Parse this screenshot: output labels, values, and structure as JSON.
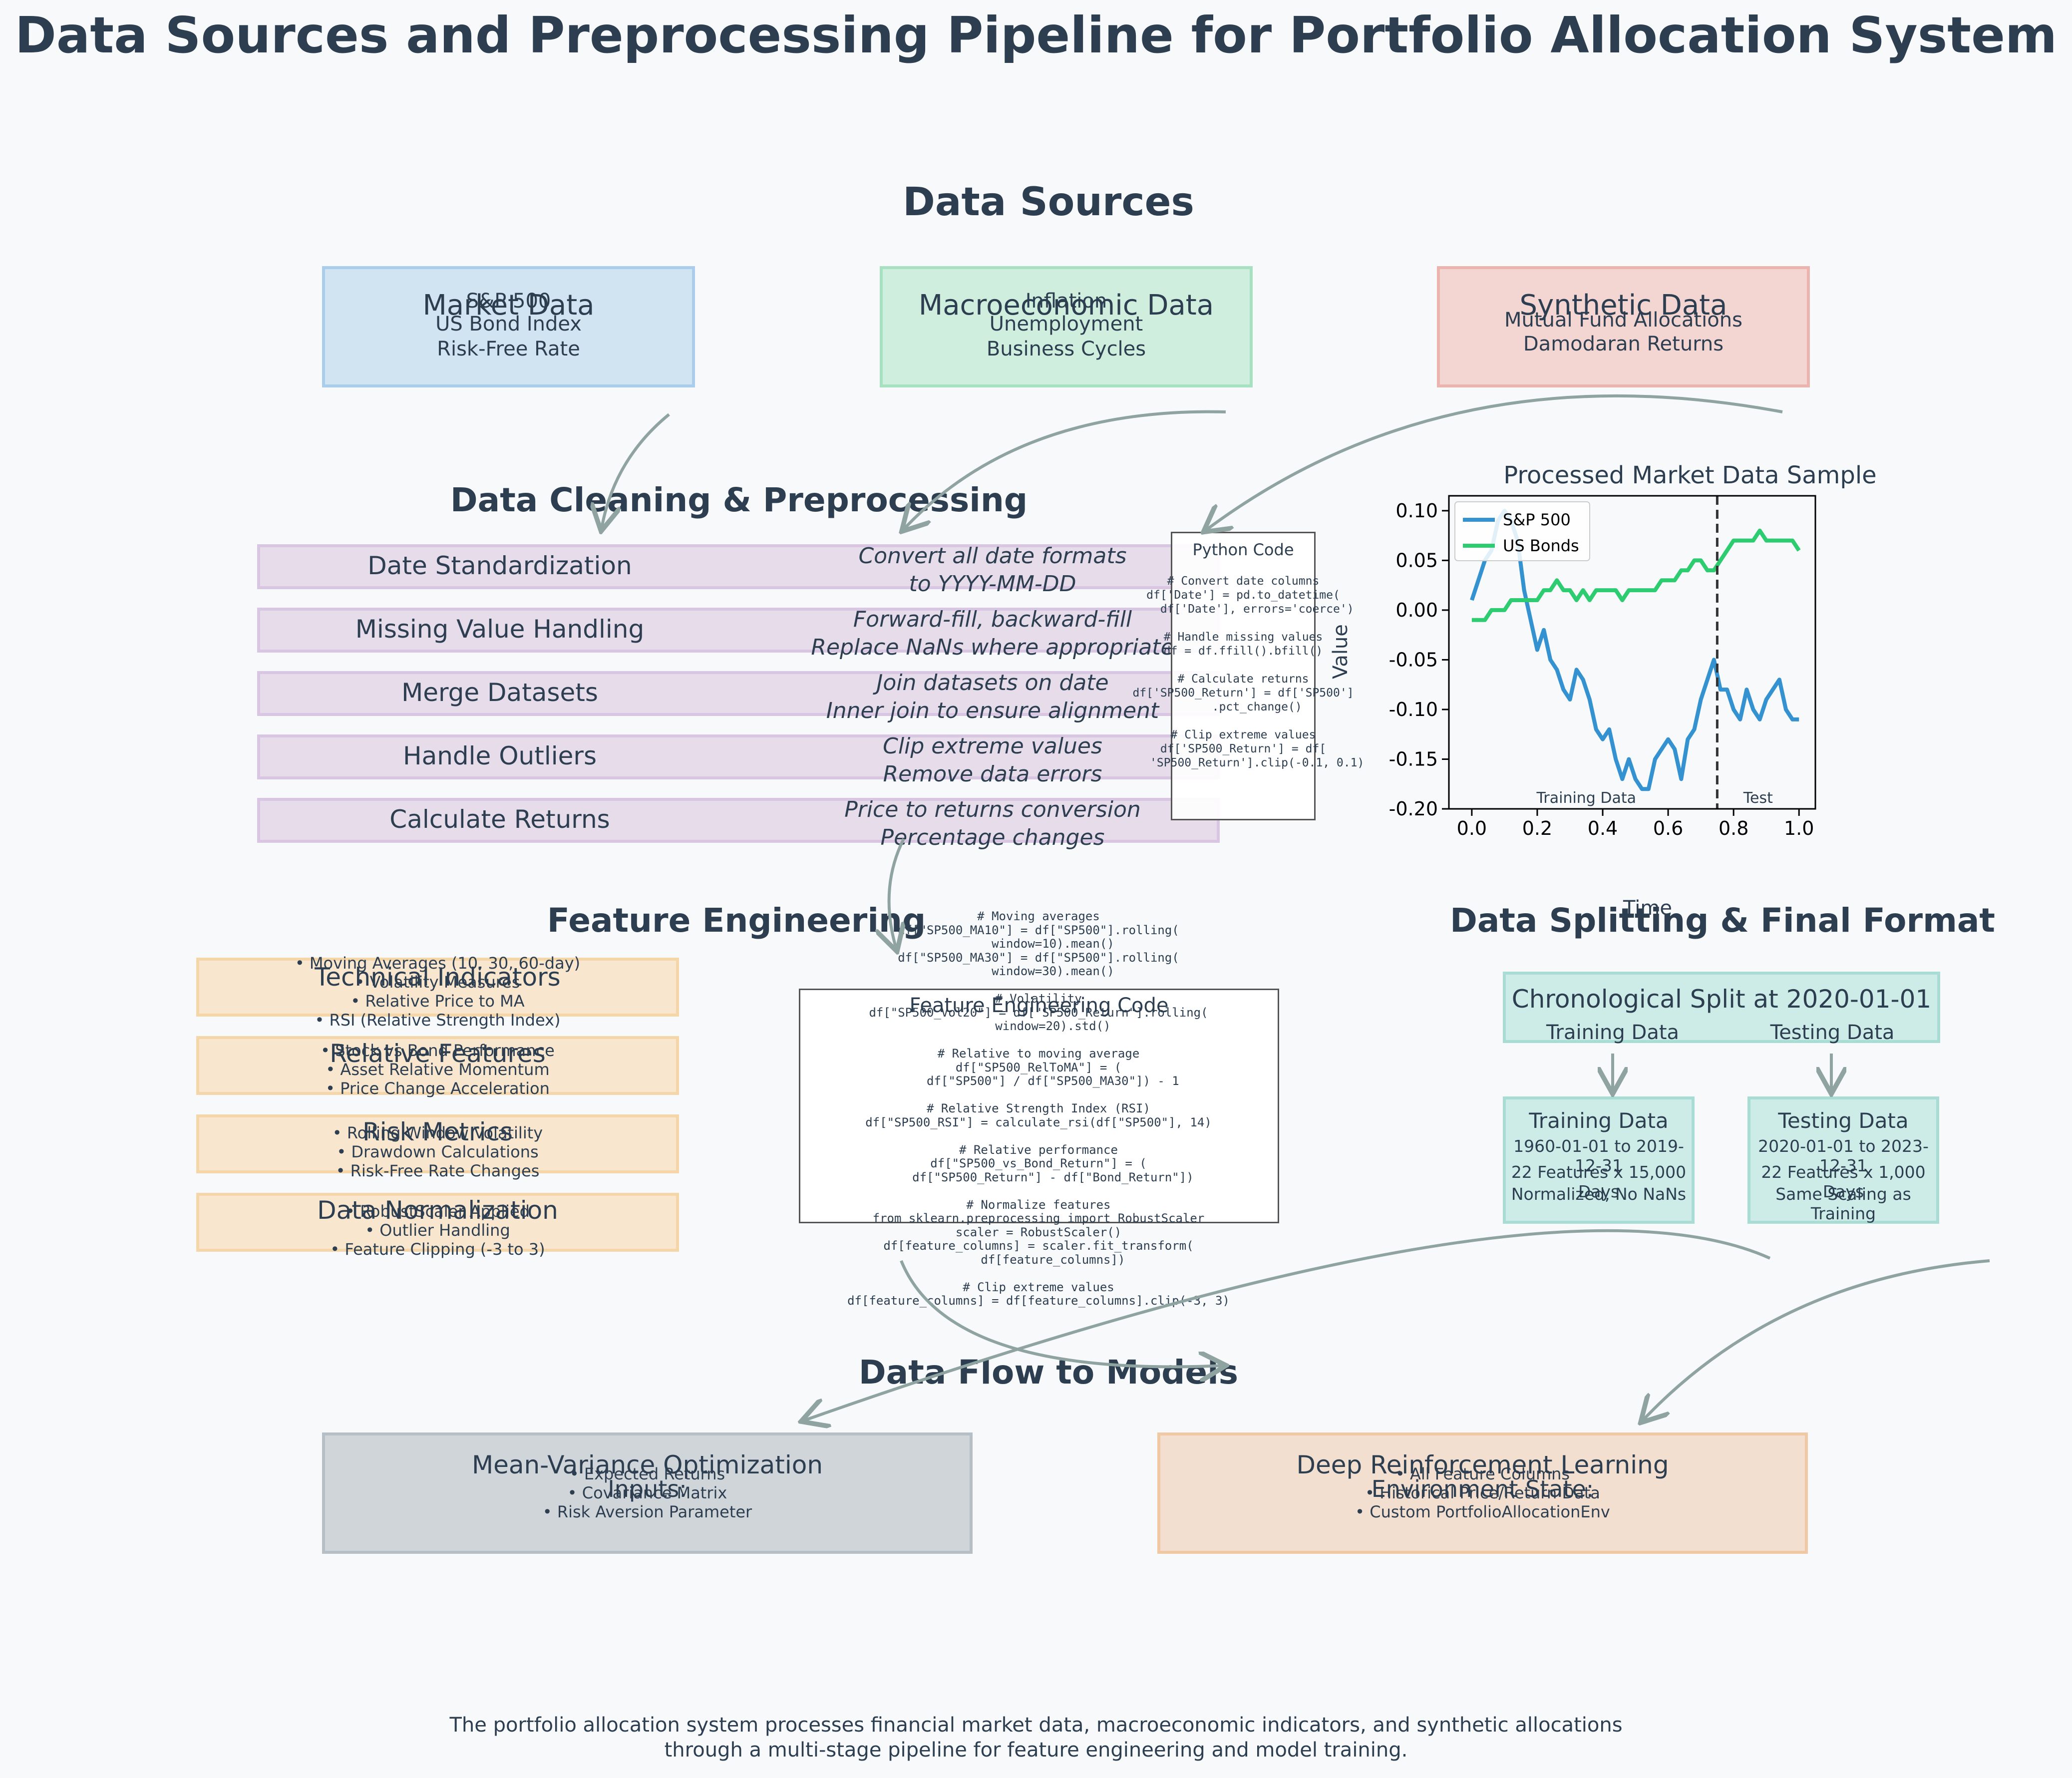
{
  "title": "Data Sources and Preprocessing Pipeline for Portfolio Allocation System",
  "sections": {
    "data_sources": "Data Sources",
    "cleaning": "Data Cleaning & Preprocessing",
    "feature_engineering": "Feature Engineering",
    "splitting": "Data Splitting & Final Format",
    "data_flow": "Data Flow to Models"
  },
  "sources": [
    {
      "title": "Market Data",
      "items": [
        "S&P 500",
        "US Bond Index",
        "Risk-Free Rate"
      ],
      "fill": "#d0e4f2",
      "border": "#a9cdea"
    },
    {
      "title": "Macroeconomic Data",
      "items": [
        "Inflation",
        "Unemployment",
        "Business Cycles"
      ],
      "fill": "#cfeedd",
      "border": "#a8e0c2"
    },
    {
      "title": "Synthetic Data",
      "items": [
        "Mutual Fund Allocations",
        "Damodaran Returns"
      ],
      "fill": "#f3d5d2",
      "border": "#ebb4af"
    }
  ],
  "cleaning_steps": [
    {
      "name": "Date Standardization",
      "desc1": "Convert all date formats",
      "desc2": "to YYYY-MM-DD"
    },
    {
      "name": "Missing Value Handling",
      "desc1": "Forward-fill, backward-fill",
      "desc2": "Replace NaNs where appropriate"
    },
    {
      "name": "Merge Datasets",
      "desc1": "Join datasets on date",
      "desc2": "Inner join to ensure alignment"
    },
    {
      "name": "Handle Outliers",
      "desc1": "Clip extreme values",
      "desc2": "Remove data errors"
    },
    {
      "name": "Calculate Returns",
      "desc1": "Price to returns conversion",
      "desc2": "Percentage changes"
    }
  ],
  "python_code": {
    "title": "Python Code",
    "code": "# Convert date columns\ndf['Date'] = pd.to_datetime(\n    df['Date'], errors='coerce')\n\n# Handle missing values\ndf = df.ffill().bfill()\n\n# Calculate returns\ndf['SP500_Return'] = df['SP500']\n    .pct_change()\n\n# Clip extreme values\ndf['SP500_Return'] = df[\n    'SP500_Return'].clip(-0.1, 0.1)"
  },
  "feature_groups": [
    {
      "title": "Technical Indicators",
      "items": [
        "• Moving Averages (10, 30, 60-day)",
        "• Volatility Measures",
        "• Relative Price to MA",
        "• RSI (Relative Strength Index)"
      ]
    },
    {
      "title": "Relative Features",
      "items": [
        "• Stock vs Bond Performance",
        "• Asset Relative Momentum",
        "• Price Change Acceleration"
      ]
    },
    {
      "title": "Risk Metrics",
      "items": [
        "• Rolling Window Volatility",
        "• Drawdown Calculations",
        "• Risk-Free Rate Changes"
      ]
    },
    {
      "title": "Data Normalization",
      "items": [
        "• RobustScaler Applied",
        "• Outlier Handling",
        "• Feature Clipping (-3 to 3)"
      ]
    }
  ],
  "fe_code": {
    "title": "Feature Engineering Code",
    "code": "# Moving averages\ndf[\"SP500_MA10\"] = df[\"SP500\"].rolling(\n    window=10).mean()\ndf[\"SP500_MA30\"] = df[\"SP500\"].rolling(\n    window=30).mean()\n\n# Volatility\ndf[\"SP500_Vol20\"] = df[\"SP500_Return\"].rolling(\n    window=20).std()\n\n# Relative to moving average\ndf[\"SP500_RelToMA\"] = (\n    df[\"SP500\"] / df[\"SP500_MA30\"]) - 1\n\n# Relative Strength Index (RSI)\ndf[\"SP500_RSI\"] = calculate_rsi(df[\"SP500\"], 14)\n\n# Relative performance\ndf[\"SP500_vs_Bond_Return\"] = (\n    df[\"SP500_Return\"] - df[\"Bond_Return\"])\n\n# Normalize features\nfrom sklearn.preprocessing import RobustScaler\nscaler = RobustScaler()\ndf[feature_columns] = scaler.fit_transform(\n    df[feature_columns])\n\n# Clip extreme values\ndf[feature_columns] = df[feature_columns].clip(-3, 3)"
  },
  "splitting": {
    "split_label": "Chronological Split at 2020-01-01",
    "training_label": "Training Data",
    "testing_label": "Testing Data",
    "training": {
      "title": "Training Data",
      "dates": "1960-01-01 to 2019-12-31",
      "size": "22 Features x 15,000 Days",
      "note": "Normalized, No NaNs"
    },
    "testing": {
      "title": "Testing Data",
      "dates": "2020-01-01 to 2023-12-31",
      "size": "22 Features x 1,000 Days",
      "note": "Same Scaling as Training"
    }
  },
  "models": [
    {
      "title": "Mean-Variance Optimization",
      "subtitle": "Inputs:",
      "items": [
        "• Expected Returns",
        "• Covariance Matrix",
        "• Risk Aversion Parameter"
      ],
      "fill": "#d0d5da",
      "border": "#b6bec6"
    },
    {
      "title": "Deep Reinforcement Learning",
      "subtitle": "Environment State:",
      "items": [
        "• All Feature Columns",
        "• Historical Price/Return Data",
        "• Custom PortfolioAllocationEnv"
      ],
      "fill": "#f3dfcf",
      "border": "#f0c8a4"
    }
  ],
  "caption": {
    "line1": "The portfolio allocation system processes financial market data, macroeconomic indicators, and synthetic allocations",
    "line2": "through a multi-stage pipeline for feature engineering and model training."
  },
  "chart_data": {
    "type": "line",
    "title": "Processed Market Data Sample",
    "xlabel": "Time",
    "ylabel": "Value",
    "xlim": [
      -0.07,
      1.05
    ],
    "ylim": [
      -0.2,
      0.115
    ],
    "xticks": [
      "0.0",
      "0.2",
      "0.4",
      "0.6",
      "0.8",
      "1.0"
    ],
    "yticks": [
      "0.10",
      "0.05",
      "0.00",
      "-0.05",
      "-0.10",
      "-0.15",
      "-0.20"
    ],
    "split_x": 0.75,
    "annotations": [
      "Training Data",
      "Test"
    ],
    "legend": "top-left",
    "x": [
      0.0,
      0.02,
      0.04,
      0.06,
      0.08,
      0.1,
      0.12,
      0.14,
      0.16,
      0.18,
      0.2,
      0.22,
      0.24,
      0.26,
      0.28,
      0.3,
      0.32,
      0.34,
      0.36,
      0.38,
      0.4,
      0.42,
      0.44,
      0.46,
      0.48,
      0.5,
      0.52,
      0.54,
      0.56,
      0.58,
      0.6,
      0.62,
      0.64,
      0.66,
      0.68,
      0.7,
      0.72,
      0.74,
      0.76,
      0.78,
      0.8,
      0.82,
      0.84,
      0.86,
      0.88,
      0.9,
      0.92,
      0.94,
      0.96,
      0.98,
      1.0
    ],
    "series": [
      {
        "name": "S&P 500",
        "color": "#3592d0",
        "values": [
          0.01,
          0.03,
          0.05,
          0.06,
          0.09,
          0.1,
          0.09,
          0.07,
          0.02,
          -0.01,
          -0.04,
          -0.02,
          -0.05,
          -0.06,
          -0.08,
          -0.09,
          -0.06,
          -0.07,
          -0.09,
          -0.12,
          -0.13,
          -0.12,
          -0.15,
          -0.17,
          -0.15,
          -0.17,
          -0.18,
          -0.18,
          -0.15,
          -0.14,
          -0.13,
          -0.14,
          -0.17,
          -0.13,
          -0.12,
          -0.09,
          -0.07,
          -0.05,
          -0.08,
          -0.08,
          -0.1,
          -0.11,
          -0.08,
          -0.1,
          -0.11,
          -0.09,
          -0.08,
          -0.07,
          -0.1,
          -0.11,
          -0.11
        ]
      },
      {
        "name": "US Bonds",
        "color": "#2ecc71",
        "values": [
          -0.01,
          -0.01,
          -0.01,
          0.0,
          0.0,
          0.0,
          0.01,
          0.01,
          0.01,
          0.01,
          0.01,
          0.02,
          0.02,
          0.03,
          0.02,
          0.02,
          0.01,
          0.02,
          0.01,
          0.02,
          0.02,
          0.02,
          0.02,
          0.01,
          0.02,
          0.02,
          0.02,
          0.02,
          0.02,
          0.03,
          0.03,
          0.03,
          0.04,
          0.04,
          0.05,
          0.05,
          0.04,
          0.04,
          0.05,
          0.06,
          0.07,
          0.07,
          0.07,
          0.07,
          0.08,
          0.07,
          0.07,
          0.07,
          0.07,
          0.07,
          0.06
        ]
      }
    ]
  },
  "colors": {
    "arrow": "#8fa3a0",
    "text": "#2c3e50"
  }
}
